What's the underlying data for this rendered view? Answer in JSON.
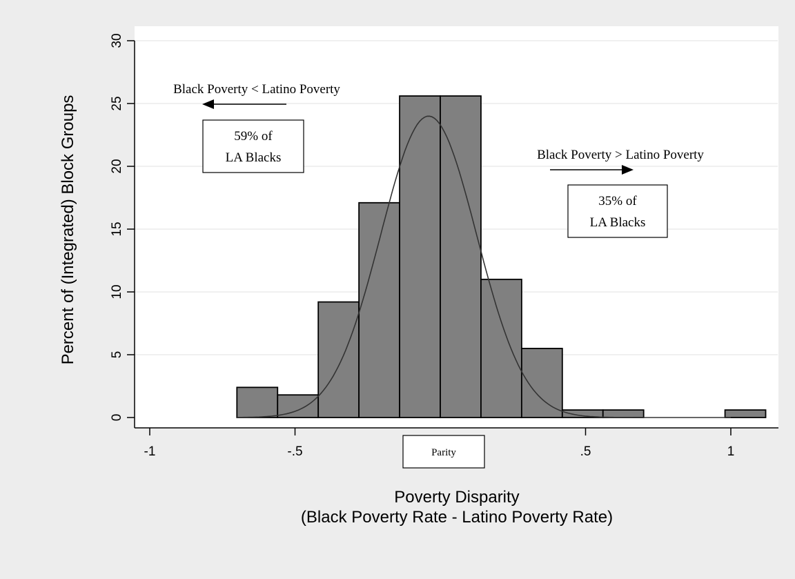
{
  "chart_data": {
    "type": "bar",
    "subtype": "histogram-with-normal-density",
    "xlabel_line1": "Poverty Disparity",
    "xlabel_line2": "(Black Poverty Rate - Latino Poverty Rate)",
    "ylabel": "Percent of (Integrated) Block Groups",
    "xlim": [
      -1,
      1.1
    ],
    "ylim": [
      0,
      30
    ],
    "x_ticks": [
      {
        "value": -1,
        "label": "-1"
      },
      {
        "value": -0.5,
        "label": "-.5"
      },
      {
        "value": 0.5,
        "label": ".5"
      },
      {
        "value": 1,
        "label": "1"
      }
    ],
    "y_ticks": [
      {
        "value": 0,
        "label": "0"
      },
      {
        "value": 5,
        "label": "5"
      },
      {
        "value": 10,
        "label": "10"
      },
      {
        "value": 15,
        "label": "15"
      },
      {
        "value": 20,
        "label": "20"
      },
      {
        "value": 25,
        "label": "25"
      },
      {
        "value": 30,
        "label": "30"
      }
    ],
    "gridlines": true,
    "bins": [
      {
        "x0": -0.7,
        "x1": -0.56,
        "value": 2.4
      },
      {
        "x0": -0.56,
        "x1": -0.42,
        "value": 1.8
      },
      {
        "x0": -0.42,
        "x1": -0.28,
        "value": 9.2
      },
      {
        "x0": -0.28,
        "x1": -0.14,
        "value": 17.1
      },
      {
        "x0": -0.14,
        "x1": 0.0,
        "value": 25.6
      },
      {
        "x0": 0.0,
        "x1": 0.14,
        "value": 25.6
      },
      {
        "x0": 0.14,
        "x1": 0.28,
        "value": 11.0
      },
      {
        "x0": 0.28,
        "x1": 0.42,
        "value": 5.5
      },
      {
        "x0": 0.42,
        "x1": 0.56,
        "value": 0.6
      },
      {
        "x0": 0.56,
        "x1": 0.7,
        "value": 0.6
      },
      {
        "x0": 0.98,
        "x1": 1.12,
        "value": 0.6
      }
    ],
    "density_curve": {
      "mean": -0.04,
      "sd": 0.165,
      "peak": 24.0,
      "x_range": [
        -0.7,
        1.0
      ]
    },
    "annotations": {
      "left_heading": "Black Poverty < Latino Poverty",
      "left_box_line1": "59% of",
      "left_box_line2": "LA Blacks",
      "right_heading": "Black Poverty > Latino Poverty",
      "right_box_line1": "35% of",
      "right_box_line2": "LA Blacks",
      "parity_label": "Parity"
    },
    "colors": {
      "background": "#ededed",
      "plot_area": "#ffffff",
      "bar_fill": "#808080",
      "bar_stroke": "#000000",
      "gridline": "#e6e6e6",
      "curve": "#333333"
    }
  }
}
